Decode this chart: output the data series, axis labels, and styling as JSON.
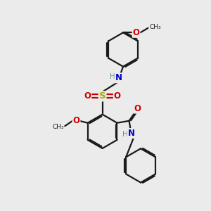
{
  "bg_color": "#ebebeb",
  "bond_color": "#1a1a1a",
  "bond_width": 1.6,
  "dbo": 0.06,
  "atoms": {
    "N": "#0000cc",
    "O": "#cc0000",
    "S": "#aaaa00",
    "H": "#6a8a8a",
    "C": "#1a1a1a"
  },
  "font_size": 8.5
}
